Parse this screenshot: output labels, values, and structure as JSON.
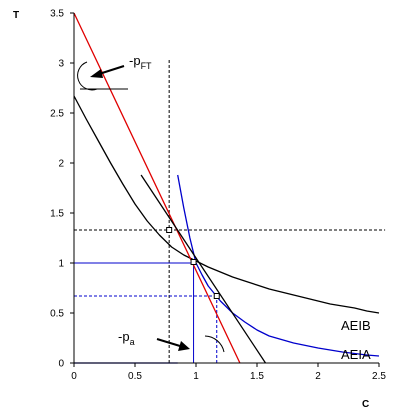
{
  "chart_data": {
    "type": "line",
    "title": "",
    "xlabel": "C",
    "ylabel": "T",
    "xlim": [
      0,
      2.5
    ],
    "ylim": [
      0,
      3.5
    ],
    "xticks": [
      "0",
      "0.5",
      "1",
      "1.5",
      "2",
      "2.5"
    ],
    "yticks": [
      "0",
      "0.5",
      "1",
      "1.5",
      "2",
      "2.5",
      "3",
      "3.5"
    ],
    "grid": false,
    "legend": "none",
    "series": [
      {
        "name": "AEIB",
        "color": "#000000",
        "x": [
          0,
          0.1,
          0.2,
          0.3,
          0.4,
          0.5,
          0.6,
          0.7,
          0.8,
          0.9,
          1.0,
          1.1,
          1.2,
          1.3,
          1.4,
          1.5,
          1.6,
          1.7,
          1.8,
          1.9,
          2.0,
          2.1,
          2.2,
          2.3,
          2.4,
          2.5
        ],
        "y": [
          2.67,
          2.44,
          2.22,
          2.0,
          1.79,
          1.59,
          1.42,
          1.28,
          1.16,
          1.08,
          1.02,
          0.96,
          0.91,
          0.86,
          0.82,
          0.78,
          0.74,
          0.71,
          0.68,
          0.65,
          0.62,
          0.59,
          0.57,
          0.55,
          0.52,
          0.5
        ]
      },
      {
        "name": "AEIA",
        "color": "#0000cc",
        "x": [
          0.85,
          0.9,
          0.95,
          1.0,
          1.05,
          1.1,
          1.2,
          1.3,
          1.4,
          1.5,
          1.6,
          1.8,
          2.0,
          2.2,
          2.4,
          2.5
        ],
        "y": [
          1.88,
          1.55,
          1.25,
          1.0,
          0.88,
          0.77,
          0.62,
          0.5,
          0.41,
          0.33,
          0.27,
          0.2,
          0.15,
          0.11,
          0.08,
          0.07
        ]
      },
      {
        "name": "",
        "color": "#0000cc",
        "x": [
          0,
          0.85
        ],
        "y": [
          0,
          0
        ]
      },
      {
        "name": "-p_FT budget line",
        "color": "#e00000",
        "x": [
          0,
          1.36
        ],
        "y": [
          3.5,
          0
        ]
      },
      {
        "name": "-p_a tangent line",
        "color": "#000000",
        "x": [
          0.55,
          1.57
        ],
        "y": [
          1.88,
          0
        ]
      }
    ],
    "points": [
      {
        "x": 0.78,
        "y": 1.33
      },
      {
        "x": 0.98,
        "y": 1.01
      },
      {
        "x": 1.17,
        "y": 0.67
      }
    ],
    "reference_lines": [
      {
        "color": "#000000",
        "style": "dashed",
        "from": [
          0.78,
          0
        ],
        "to": [
          0.78,
          3.03
        ]
      },
      {
        "color": "#000000",
        "style": "dashed",
        "from": [
          0,
          1.33
        ],
        "to": [
          2.55,
          1.33
        ]
      },
      {
        "color": "#0000cc",
        "style": "solid",
        "from": [
          0,
          1.0
        ],
        "to": [
          0.98,
          1.0
        ]
      },
      {
        "color": "#0000cc",
        "style": "solid",
        "from": [
          0.98,
          0
        ],
        "to": [
          0.98,
          1.0
        ]
      },
      {
        "color": "#0000cc",
        "style": "dashed",
        "from": [
          0,
          0.67
        ],
        "to": [
          1.17,
          0.67
        ]
      },
      {
        "color": "#0000cc",
        "style": "dashed",
        "from": [
          1.17,
          0
        ],
        "to": [
          1.17,
          0.67
        ]
      }
    ],
    "annotations": {
      "p_ft": {
        "prefix": "-p",
        "subscript": "FT"
      },
      "p_a": {
        "prefix": "-p",
        "subscript": "a"
      }
    }
  }
}
